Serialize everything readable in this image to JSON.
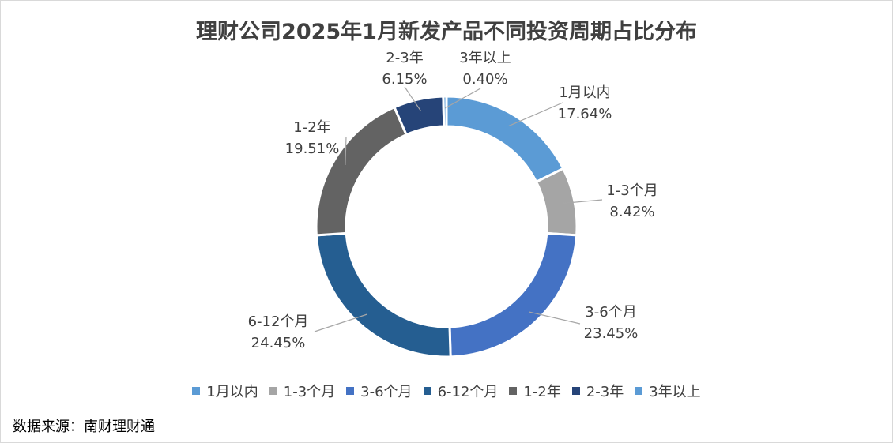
{
  "chart_data": {
    "type": "pie",
    "donut": true,
    "title": "理财公司2025年1月新发产品不同投资周期占比分布",
    "legend_position": "bottom",
    "unit": "%",
    "slices": [
      {
        "label": "1月以内",
        "value": 17.64,
        "value_label": "17.64%",
        "color": "#5B9BD5"
      },
      {
        "label": "1-3个月",
        "value": 8.42,
        "value_label": "8.42%",
        "color": "#A5A5A5"
      },
      {
        "label": "3-6个月",
        "value": 23.45,
        "value_label": "23.45%",
        "color": "#4472C4"
      },
      {
        "label": "6-12个月",
        "value": 24.45,
        "value_label": "24.45%",
        "color": "#255E91"
      },
      {
        "label": "1-2年",
        "value": 19.51,
        "value_label": "19.51%",
        "color": "#636363"
      },
      {
        "label": "2-3年",
        "value": 6.15,
        "value_label": "6.15%",
        "color": "#264478"
      },
      {
        "label": "3年以上",
        "value": 0.4,
        "value_label": "0.40%",
        "color": "#5B9BD5"
      }
    ]
  },
  "source_text": "数据来源：南财理财通"
}
